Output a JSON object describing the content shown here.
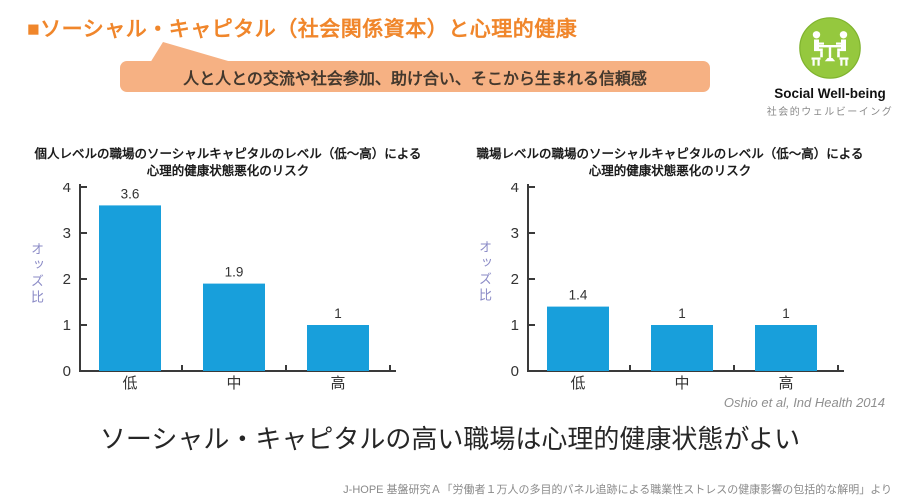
{
  "colors": {
    "title_orange": "#F0862B",
    "callout_fill": "#F6B183",
    "callout_text": "#43382D",
    "bar_blue": "#189FDB",
    "axis_label_purple": "#8A8AC6",
    "icon_green": "#95C83E"
  },
  "header": {
    "title": "■ソーシャル・キャピタル（社会関係資本）と心理的健康",
    "callout": "人と人との交流や社会参加、助け合い、そこから生まれる信頼感"
  },
  "badge": {
    "icon": "people-meeting-icon",
    "label_en": "Social Well-being",
    "label_ja": "社会的ウェルビーイング"
  },
  "chart_data": [
    {
      "type": "bar",
      "title_lines": [
        "個人レベルの職場のソーシャルキャピタルのレベル（低～高）による",
        "心理的健康状態悪化のリスク"
      ],
      "ylabel": "オッズ比",
      "xlabel": "",
      "ylim": [
        0,
        4
      ],
      "yticks": [
        0,
        1,
        2,
        3,
        4
      ],
      "categories": [
        "低",
        "中",
        "高"
      ],
      "values": [
        3.6,
        1.9,
        1
      ],
      "value_labels": [
        "3.6",
        "1.9",
        "1"
      ],
      "bar_color": "#189FDB",
      "grid": false,
      "legend": false
    },
    {
      "type": "bar",
      "title_lines": [
        "職場レベルの職場のソーシャルキャピタルのレベル（低～高）による",
        "心理的健康状態悪化のリスク"
      ],
      "ylabel": "オッズ比",
      "xlabel": "",
      "ylim": [
        0,
        4
      ],
      "yticks": [
        0,
        1,
        2,
        3,
        4
      ],
      "categories": [
        "低",
        "中",
        "高"
      ],
      "values": [
        1.4,
        1,
        1
      ],
      "value_labels": [
        "1.4",
        "1",
        "1"
      ],
      "bar_color": "#189FDB",
      "grid": false,
      "legend": false
    }
  ],
  "citation": "Oshio et al, Ind Health 2014",
  "conclusion": "ソーシャル・キャピタルの高い職場は心理的健康状態がよい",
  "source": "J-HOPE 基盤研究Ａ「労働者１万人の多目的パネル追跡による職業性ストレスの健康影響の包括的な解明」より"
}
